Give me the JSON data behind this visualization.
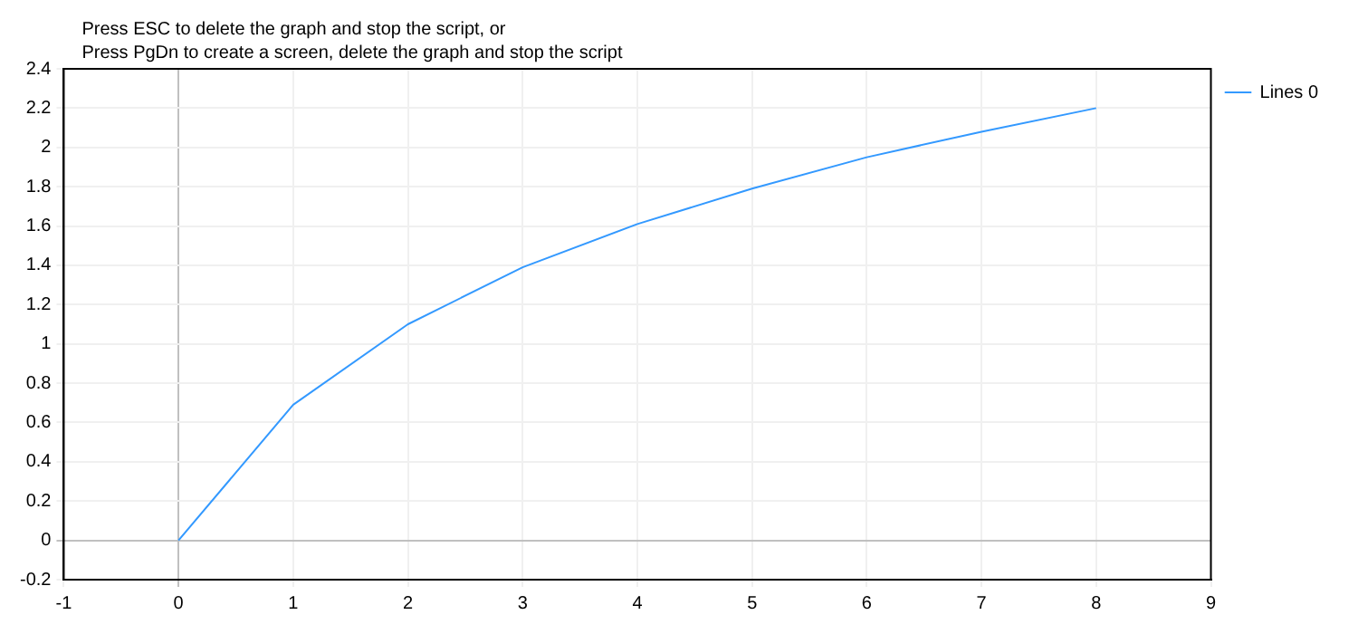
{
  "chart_data": {
    "type": "line",
    "annotations": [
      "Press ESC to delete the graph and stop the script, or",
      "Press PgDn to create a screen, delete the graph and stop the script"
    ],
    "x": [
      0,
      1,
      2,
      3,
      4,
      5,
      6,
      7,
      8
    ],
    "series": [
      {
        "name": "Lines 0",
        "color": "#3399ff",
        "values": [
          0,
          0.69,
          1.1,
          1.39,
          1.61,
          1.79,
          1.95,
          2.08,
          2.2
        ]
      }
    ],
    "xlim": [
      -1,
      9
    ],
    "xticks": [
      -1,
      0,
      1,
      2,
      3,
      4,
      5,
      6,
      7,
      8,
      9
    ],
    "ylim": [
      -0.2,
      2.4
    ],
    "yticks": [
      -0.2,
      0,
      0.2,
      0.4,
      0.6,
      0.8,
      1,
      1.2,
      1.4,
      1.6,
      1.8,
      2,
      2.2,
      2.4
    ],
    "grid": true,
    "legend": "top right",
    "marker": "none",
    "line_style": "solid"
  }
}
